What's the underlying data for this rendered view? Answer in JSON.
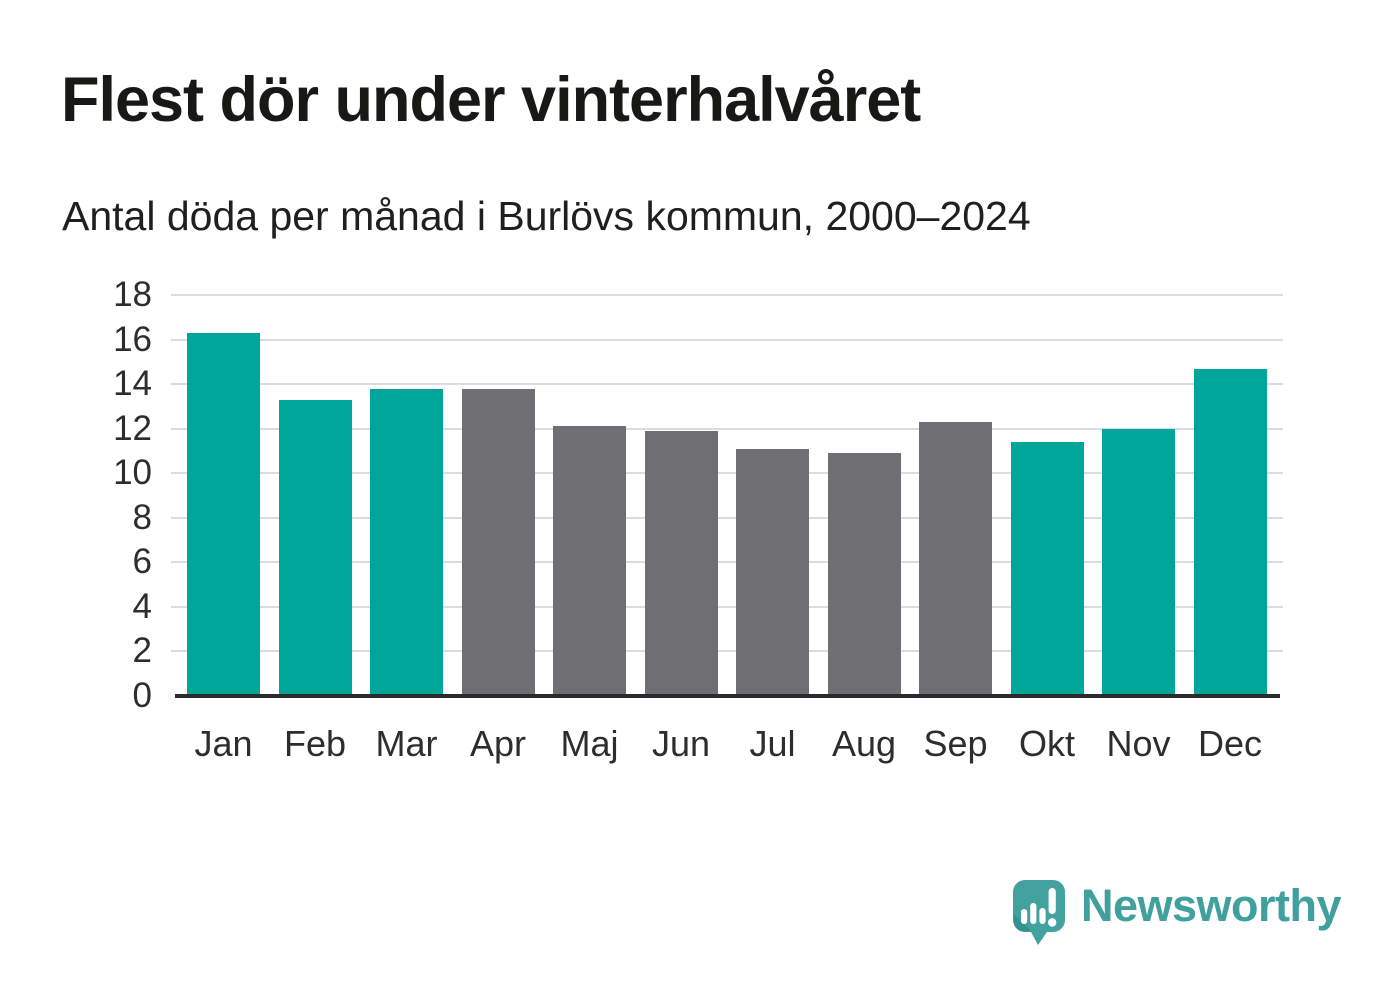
{
  "header": {
    "title": "Flest dör under vinterhalvåret",
    "subtitle": "Antal döda per månad i Burlövs kommun, 2000–2024"
  },
  "chart_data": {
    "type": "bar",
    "title": "Flest dör under vinterhalvåret",
    "subtitle": "Antal döda per månad i Burlövs kommun, 2000–2024",
    "categories": [
      "Jan",
      "Feb",
      "Mar",
      "Apr",
      "Maj",
      "Jun",
      "Jul",
      "Aug",
      "Sep",
      "Okt",
      "Nov",
      "Dec"
    ],
    "values": [
      16.3,
      13.3,
      13.8,
      13.8,
      12.1,
      11.9,
      11.1,
      10.9,
      12.3,
      11.4,
      12.0,
      14.7
    ],
    "highlighted": [
      true,
      true,
      true,
      false,
      false,
      false,
      false,
      false,
      false,
      true,
      true,
      true
    ],
    "highlight_color": "#00a69a",
    "base_color": "#6e6e73",
    "xlabel": "",
    "ylabel": "",
    "ylim": [
      0,
      18
    ],
    "yticks": [
      0,
      2,
      4,
      6,
      8,
      10,
      12,
      14,
      16,
      18
    ],
    "grid": "horizontal-on",
    "legend": "none"
  },
  "footer": {
    "brand": "Newsworthy"
  },
  "colors": {
    "bar_teal": "#00a69a",
    "bar_gray": "#6e6e73",
    "gridline": "#dcdcdc",
    "axis": "#2b2b2b",
    "tick_text": "#2d2d2d",
    "title_text": "#181815",
    "logo_teal": "#43a2a0"
  },
  "icons": {
    "logo_icon": "newsworthy-speech-bubble-bar-chart-icon"
  }
}
